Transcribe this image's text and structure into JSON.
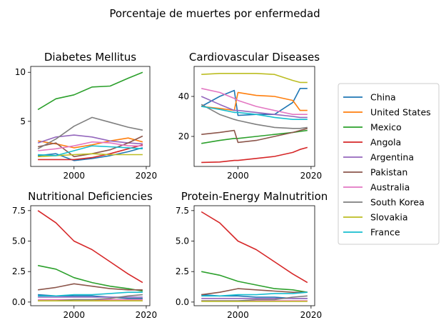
{
  "figure": {
    "title": "Porcentaje de muertes por enfermedad"
  },
  "legend": {
    "placement": "right",
    "entries": [
      {
        "name": "China",
        "color": "#1f77b4"
      },
      {
        "name": "United States",
        "color": "#ff7f0e"
      },
      {
        "name": "Mexico",
        "color": "#2ca02c"
      },
      {
        "name": "Angola",
        "color": "#d62728"
      },
      {
        "name": "Argentina",
        "color": "#9467bd"
      },
      {
        "name": "Pakistan",
        "color": "#8c564b"
      },
      {
        "name": "Australia",
        "color": "#e377c2"
      },
      {
        "name": "South Korea",
        "color": "#7f7f7f"
      },
      {
        "name": "Slovakia",
        "color": "#bcbd22"
      },
      {
        "name": "France",
        "color": "#17becf"
      }
    ]
  },
  "chart_data": [
    {
      "type": "line",
      "title": "Diabetes Mellitus",
      "xlim": [
        1988,
        2021
      ],
      "ylim": [
        0.4,
        10.6
      ],
      "xticks": [
        2000,
        2020
      ],
      "yticks": [
        5,
        10
      ],
      "grid": false,
      "x": [
        1990,
        1995,
        2000,
        2005,
        2010,
        2015,
        2019
      ],
      "series": [
        {
          "name": "China",
          "values": [
            1.5,
            1.7,
            1.0,
            1.2,
            1.5,
            1.9,
            2.3
          ]
        },
        {
          "name": "United States",
          "values": [
            3.0,
            2.7,
            2.3,
            2.6,
            3.0,
            3.3,
            2.9
          ]
        },
        {
          "name": "Mexico",
          "values": [
            6.2,
            7.3,
            7.7,
            8.5,
            8.6,
            9.4,
            10.0
          ]
        },
        {
          "name": "Angola",
          "values": [
            1.1,
            1.1,
            1.1,
            1.3,
            1.7,
            2.2,
            2.6
          ]
        },
        {
          "name": "Argentina",
          "values": [
            2.8,
            3.4,
            3.6,
            3.4,
            3.0,
            2.8,
            2.7
          ]
        },
        {
          "name": "Pakistan",
          "values": [
            2.4,
            2.8,
            1.4,
            1.7,
            2.1,
            2.8,
            3.5
          ]
        },
        {
          "name": "Australia",
          "values": [
            2.0,
            2.2,
            2.5,
            2.9,
            2.8,
            2.5,
            2.5
          ]
        },
        {
          "name": "South Korea",
          "values": [
            2.2,
            3.2,
            4.5,
            5.4,
            4.9,
            4.4,
            4.1
          ]
        },
        {
          "name": "Slovakia",
          "values": [
            1.4,
            1.5,
            1.6,
            1.7,
            1.6,
            1.6,
            1.6
          ]
        },
        {
          "name": "France",
          "values": [
            1.6,
            1.5,
            2.0,
            2.5,
            2.4,
            2.3,
            2.2
          ]
        }
      ]
    },
    {
      "type": "line",
      "title": "Cardiovascular Diseases",
      "xlim": [
        1988,
        2021
      ],
      "ylim": [
        5,
        55
      ],
      "xticks": [
        2000,
        2020
      ],
      "yticks": [
        20,
        40
      ],
      "grid": false,
      "x": [
        1990,
        1995,
        1999,
        2000,
        2005,
        2010,
        2015,
        2017,
        2019
      ],
      "series": [
        {
          "name": "China",
          "values": [
            35,
            40,
            43,
            30.5,
            31,
            31,
            37,
            44,
            44
          ]
        },
        {
          "name": "United States",
          "values": [
            35,
            34,
            33,
            42,
            40.5,
            40,
            38,
            33,
            33
          ]
        },
        {
          "name": "Mexico",
          "values": [
            16.5,
            18,
            19,
            19,
            20,
            21,
            22,
            22.5,
            23
          ]
        },
        {
          "name": "Angola",
          "values": [
            7,
            7.2,
            8,
            8,
            9,
            10,
            12,
            13.5,
            14.5
          ]
        },
        {
          "name": "Argentina",
          "values": [
            40,
            36,
            33,
            33,
            32,
            31,
            30,
            29.5,
            29.5
          ]
        },
        {
          "name": "Pakistan",
          "values": [
            21,
            22,
            23,
            17,
            18,
            20,
            22,
            23,
            24
          ]
        },
        {
          "name": "Australia",
          "values": [
            44,
            42,
            39,
            38,
            35,
            33,
            31,
            31,
            31
          ]
        },
        {
          "name": "South Korea",
          "values": [
            36,
            31,
            28.5,
            28,
            26,
            24.5,
            24,
            24,
            24.5
          ]
        },
        {
          "name": "Slovakia",
          "values": [
            51,
            51.5,
            51.5,
            51.5,
            51.5,
            51,
            48,
            47,
            47
          ]
        },
        {
          "name": "France",
          "values": [
            35,
            33.5,
            32,
            32,
            31,
            29.5,
            28.5,
            28.5,
            28.5
          ]
        }
      ]
    },
    {
      "type": "line",
      "title": "Nutritional Deficiencies",
      "xlim": [
        1988,
        2021
      ],
      "ylim": [
        -0.3,
        7.9
      ],
      "xticks": [
        2000,
        2020
      ],
      "yticks": [
        0.0,
        2.5,
        5.0,
        7.5
      ],
      "grid": false,
      "x": [
        1990,
        1995,
        2000,
        2005,
        2010,
        2015,
        2019
      ],
      "series": [
        {
          "name": "China",
          "values": [
            0.6,
            0.5,
            0.5,
            0.5,
            0.4,
            0.3,
            0.3
          ]
        },
        {
          "name": "United States",
          "values": [
            0.1,
            0.1,
            0.1,
            0.1,
            0.2,
            0.2,
            0.2
          ]
        },
        {
          "name": "Mexico",
          "values": [
            3.0,
            2.7,
            2.0,
            1.6,
            1.3,
            1.1,
            0.9
          ]
        },
        {
          "name": "Angola",
          "values": [
            7.5,
            6.5,
            5.0,
            4.3,
            3.3,
            2.3,
            1.6
          ]
        },
        {
          "name": "Argentina",
          "values": [
            0.4,
            0.4,
            0.4,
            0.4,
            0.4,
            0.4,
            0.4
          ]
        },
        {
          "name": "Pakistan",
          "values": [
            1.0,
            1.2,
            1.5,
            1.3,
            1.1,
            1.0,
            1.0
          ]
        },
        {
          "name": "Australia",
          "values": [
            0.2,
            0.2,
            0.2,
            0.2,
            0.2,
            0.2,
            0.2
          ]
        },
        {
          "name": "South Korea",
          "values": [
            0.1,
            0.1,
            0.2,
            0.2,
            0.3,
            0.5,
            0.6
          ]
        },
        {
          "name": "Slovakia",
          "values": [
            0.1,
            0.1,
            0.1,
            0.1,
            0.1,
            0.1,
            0.1
          ]
        },
        {
          "name": "France",
          "values": [
            0.5,
            0.5,
            0.6,
            0.6,
            0.7,
            0.8,
            0.8
          ]
        }
      ]
    },
    {
      "type": "line",
      "title": "Protein-Energy Malnutrition",
      "xlim": [
        1988,
        2021
      ],
      "ylim": [
        -0.3,
        7.9
      ],
      "xticks": [
        2000,
        2020
      ],
      "yticks": [
        0.0,
        2.5,
        5.0,
        7.5
      ],
      "grid": false,
      "x": [
        1990,
        1995,
        2000,
        2005,
        2010,
        2015,
        2019
      ],
      "series": [
        {
          "name": "China",
          "values": [
            0.6,
            0.5,
            0.5,
            0.4,
            0.4,
            0.3,
            0.3
          ]
        },
        {
          "name": "United States",
          "values": [
            0.1,
            0.1,
            0.1,
            0.1,
            0.1,
            0.1,
            0.1
          ]
        },
        {
          "name": "Mexico",
          "values": [
            2.5,
            2.2,
            1.7,
            1.4,
            1.1,
            1.0,
            0.8
          ]
        },
        {
          "name": "Angola",
          "values": [
            7.4,
            6.5,
            5.0,
            4.3,
            3.3,
            2.3,
            1.6
          ]
        },
        {
          "name": "Argentina",
          "values": [
            0.3,
            0.3,
            0.3,
            0.3,
            0.3,
            0.3,
            0.3
          ]
        },
        {
          "name": "Pakistan",
          "values": [
            0.6,
            0.8,
            1.1,
            1.0,
            0.9,
            0.8,
            0.8
          ]
        },
        {
          "name": "Australia",
          "values": [
            0.1,
            0.1,
            0.1,
            0.1,
            0.1,
            0.1,
            0.1
          ]
        },
        {
          "name": "South Korea",
          "values": [
            0.1,
            0.1,
            0.1,
            0.2,
            0.2,
            0.4,
            0.5
          ]
        },
        {
          "name": "Slovakia",
          "values": [
            0.05,
            0.05,
            0.05,
            0.05,
            0.05,
            0.05,
            0.05
          ]
        },
        {
          "name": "France",
          "values": [
            0.5,
            0.5,
            0.6,
            0.6,
            0.7,
            0.7,
            0.8
          ]
        }
      ]
    }
  ]
}
